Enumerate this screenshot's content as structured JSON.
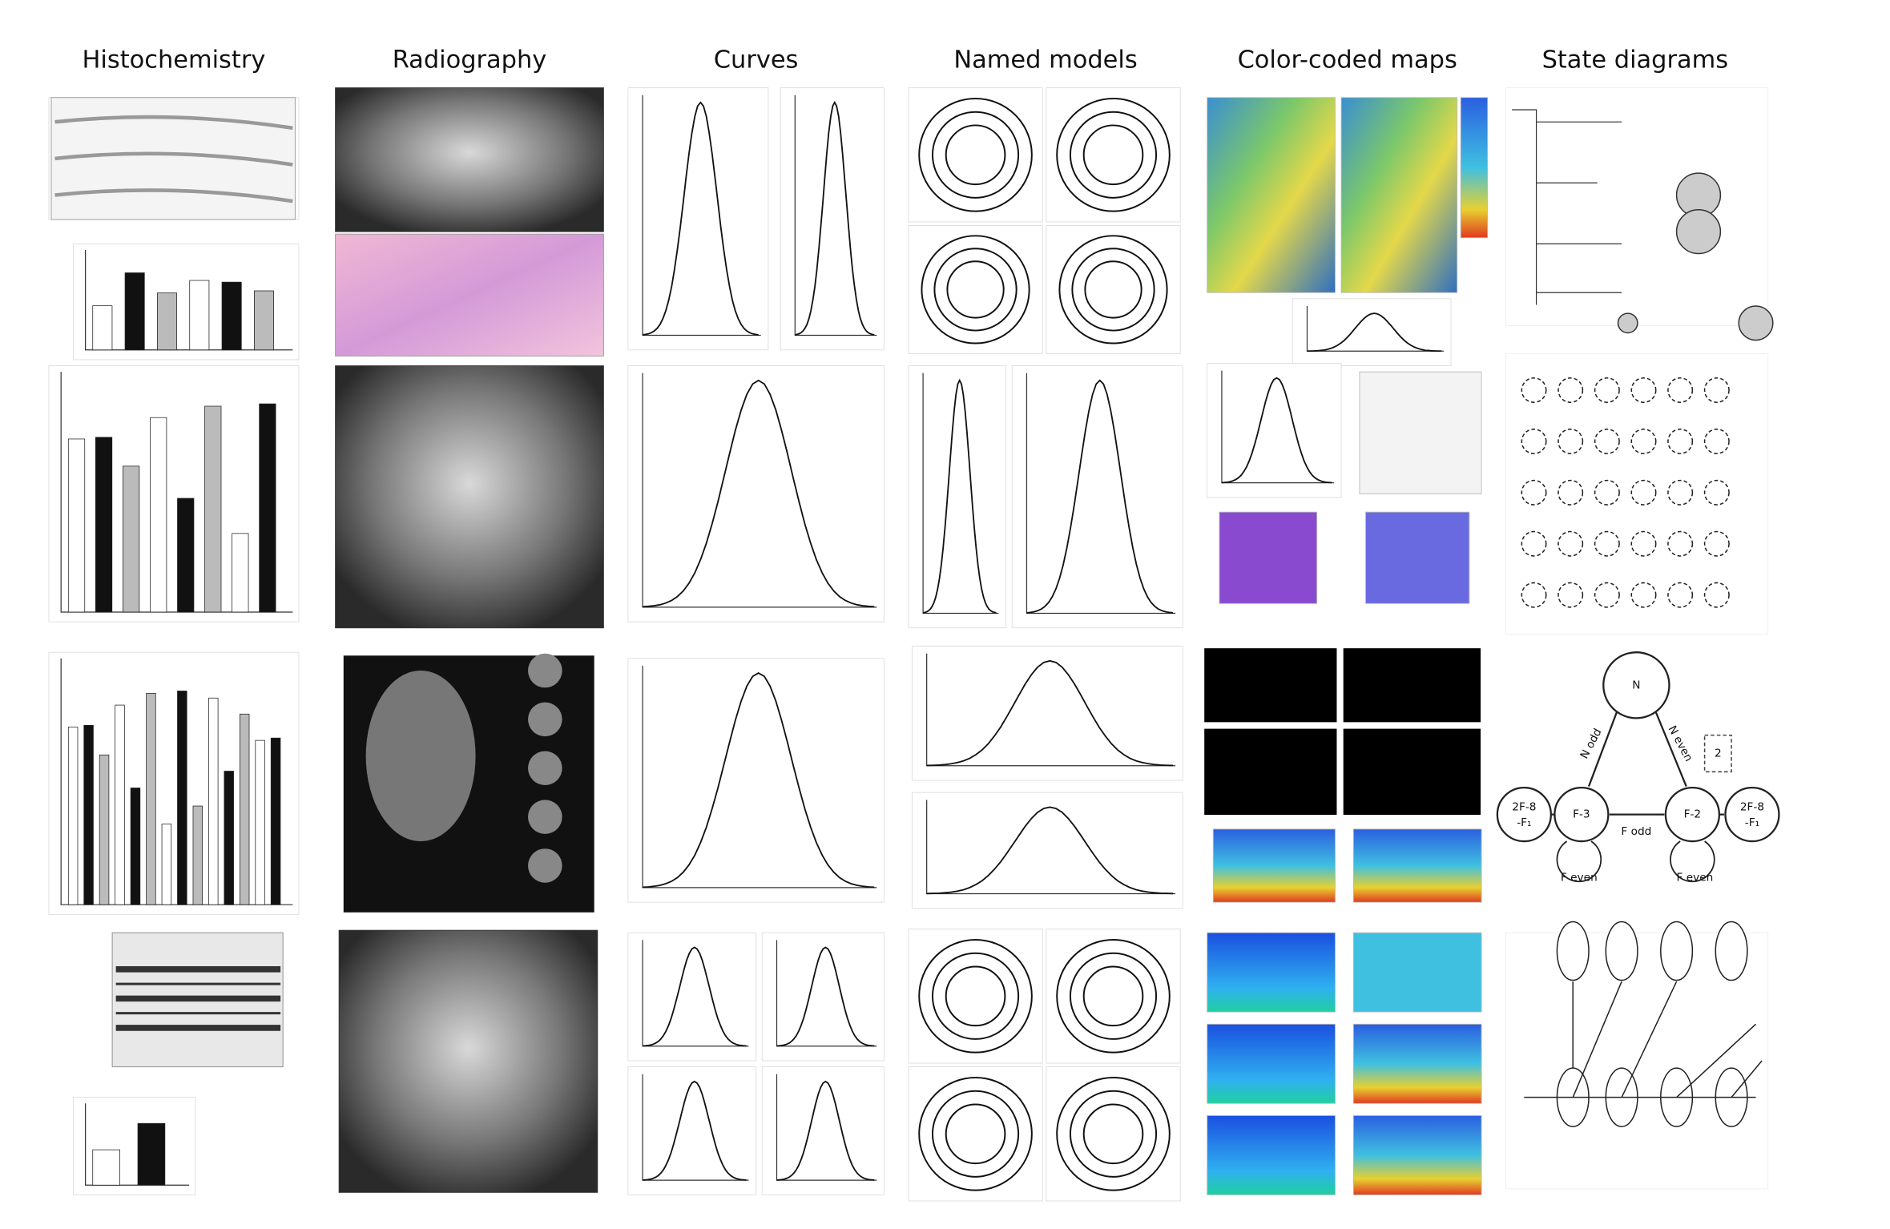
{
  "headers": [
    "Histochemistry",
    "Radiography",
    "Curves",
    "Named models",
    "Color-coded maps",
    "State diagrams"
  ],
  "state_diagram": {
    "nodes": [
      "N",
      "F-3",
      "F-2"
    ],
    "side_nodes": [
      [
        "2F-8",
        "-F₁"
      ],
      [
        "2F-8",
        "-F₁"
      ]
    ],
    "edge_labels": [
      "N odd",
      "N even",
      "F odd",
      "F even",
      "F even"
    ],
    "box_label": "2"
  }
}
